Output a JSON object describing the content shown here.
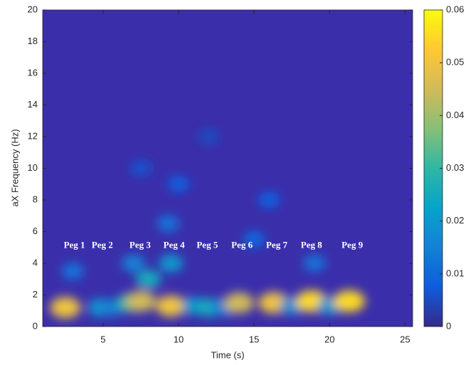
{
  "chart_data": {
    "type": "heatmap",
    "xlabel": "Time (s)",
    "ylabel": "aX Frequency (Hz)",
    "xlim": [
      1,
      25.5
    ],
    "ylim": [
      0,
      20
    ],
    "xticks": [
      5,
      10,
      15,
      20,
      25
    ],
    "yticks": [
      0,
      2,
      4,
      6,
      8,
      10,
      12,
      14,
      16,
      18,
      20
    ],
    "clim": [
      0,
      0.06
    ],
    "cticks": [
      0,
      0.01,
      0.02,
      0.03,
      0.04,
      0.05,
      0.06
    ],
    "colormap": [
      "#352a87",
      "#0f5cdd",
      "#1481d6",
      "#06a4ca",
      "#2eb7a4",
      "#87bf77",
      "#d1bb59",
      "#fec832",
      "#f9fb0e"
    ],
    "background_color": "#3b2eaa",
    "blobs": {
      "x": [
        2.5,
        4.8,
        5.6,
        6.8,
        7.5,
        8.0,
        9.5,
        9.5,
        11.0,
        12.0,
        13.0,
        14.0,
        16.3,
        17.5,
        18.8,
        20.0,
        21.3,
        3.0,
        7.0,
        9.3,
        15.0,
        19.0,
        16.0,
        10.0,
        7.5,
        12.0
      ],
      "y": [
        1.2,
        1.2,
        1.2,
        1.5,
        1.6,
        3.0,
        1.3,
        4.0,
        1.3,
        1.2,
        1.2,
        1.5,
        1.5,
        1.3,
        1.6,
        1.3,
        1.6,
        3.5,
        4.0,
        6.5,
        5.5,
        4.0,
        8.0,
        9.0,
        10.0,
        12.0
      ],
      "values": [
        0.05,
        0.02,
        0.015,
        0.03,
        0.045,
        0.025,
        0.05,
        0.02,
        0.02,
        0.025,
        0.015,
        0.045,
        0.05,
        0.018,
        0.055,
        0.02,
        0.055,
        0.012,
        0.015,
        0.012,
        0.01,
        0.012,
        0.008,
        0.008,
        0.006,
        0.005
      ]
    },
    "annotations": [
      {
        "text": "Peg 1",
        "x": 3.1,
        "y": 5.1
      },
      {
        "text": "Peg 2",
        "x": 4.95,
        "y": 5.1
      },
      {
        "text": "Peg 3",
        "x": 7.45,
        "y": 5.1
      },
      {
        "text": "Peg 4",
        "x": 9.7,
        "y": 5.1
      },
      {
        "text": "Peg 5",
        "x": 11.9,
        "y": 5.1
      },
      {
        "text": "Peg 6",
        "x": 14.2,
        "y": 5.1
      },
      {
        "text": "Peg 7",
        "x": 16.5,
        "y": 5.1
      },
      {
        "text": "Peg 8",
        "x": 18.8,
        "y": 5.1
      },
      {
        "text": "Peg 9",
        "x": 21.5,
        "y": 5.1
      }
    ]
  }
}
